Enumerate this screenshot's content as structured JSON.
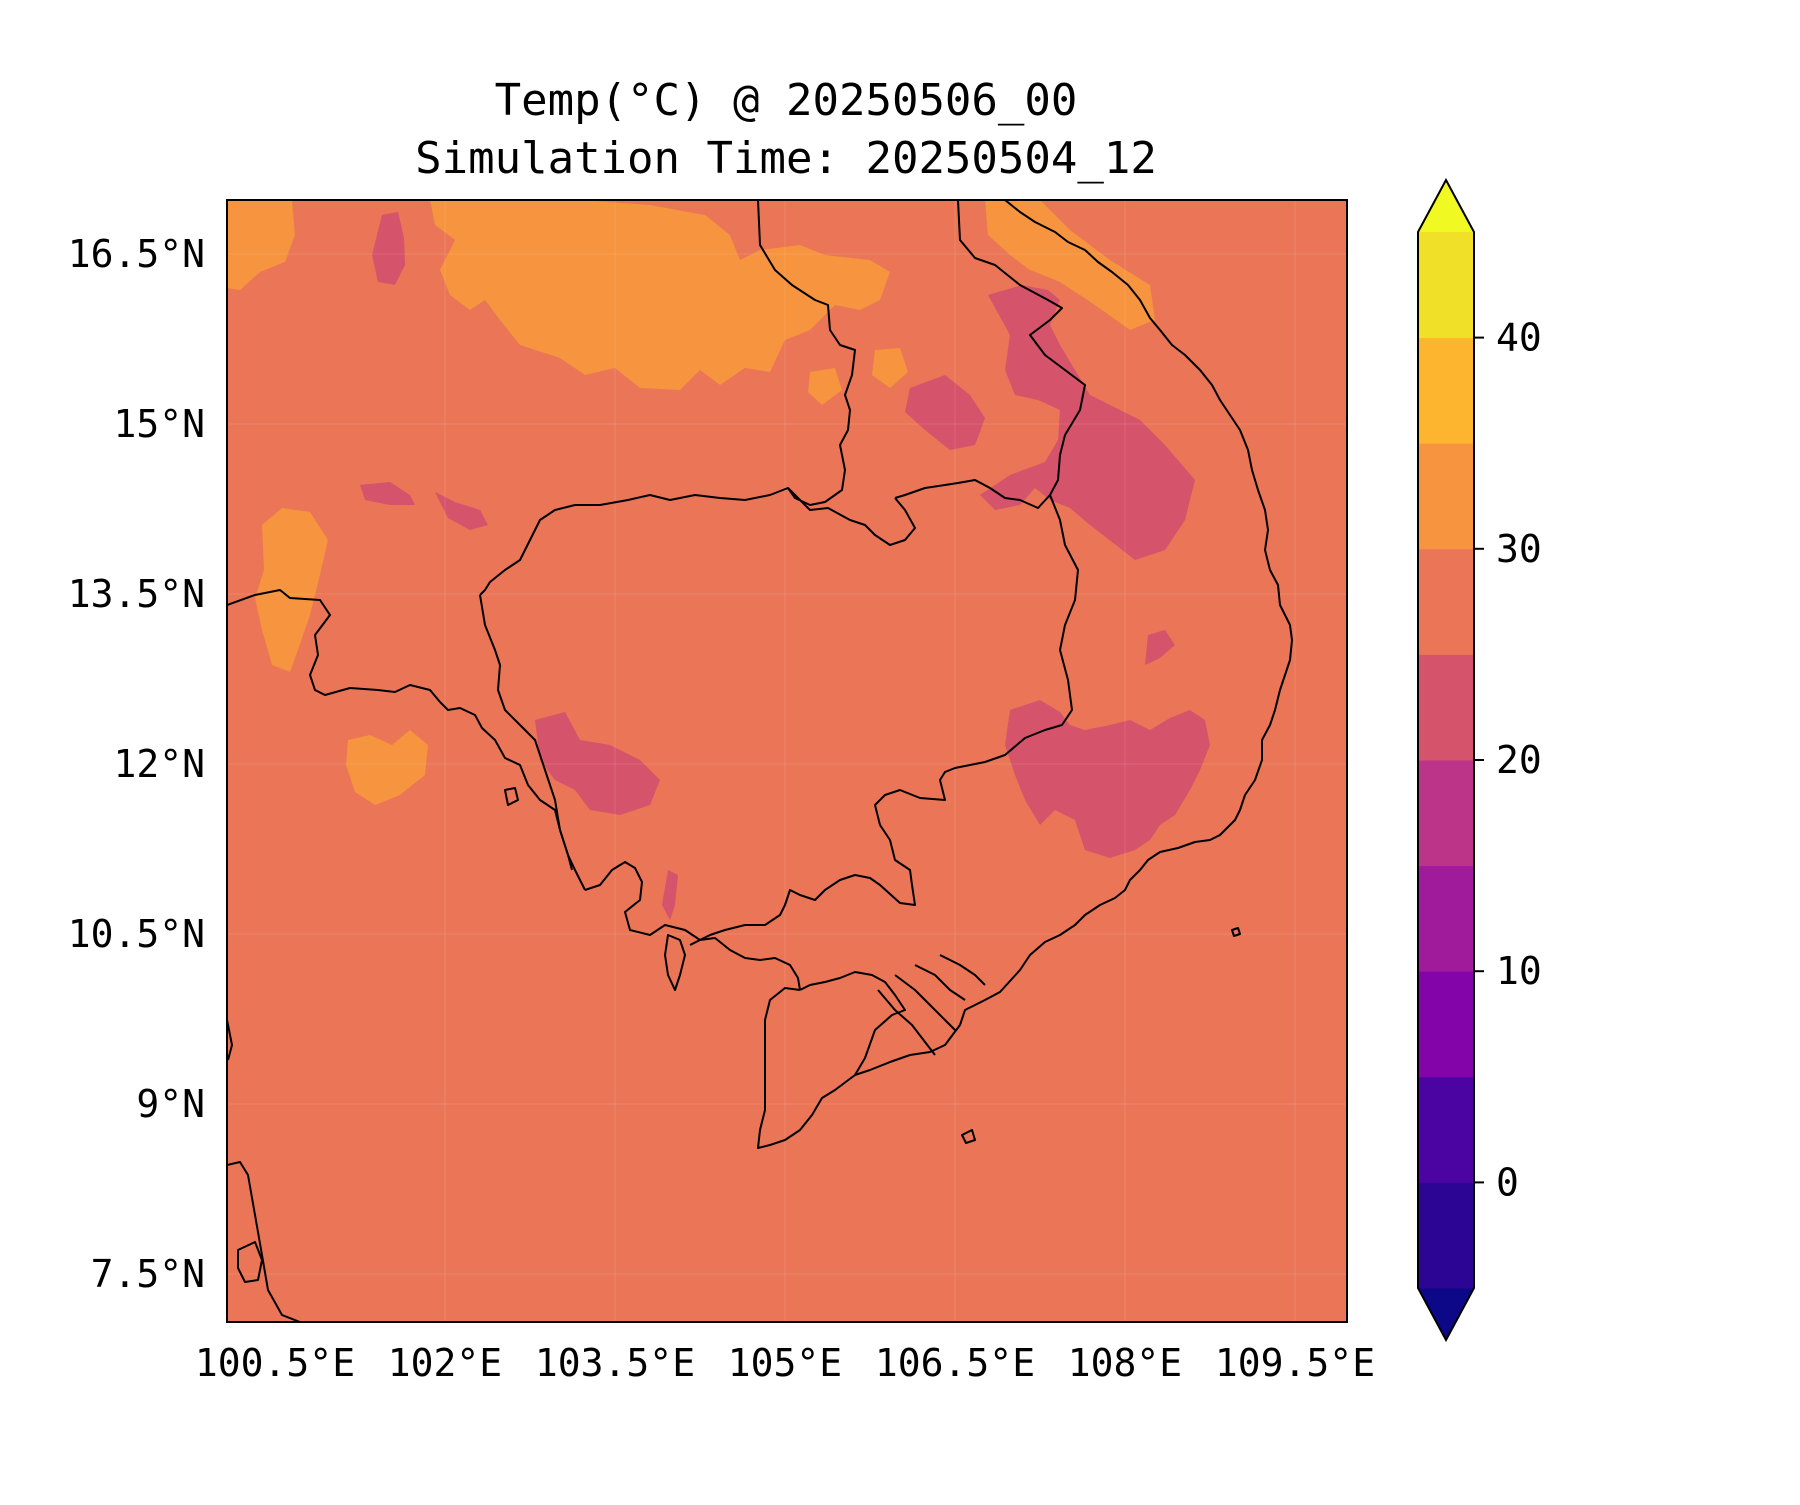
{
  "title": {
    "line1": "Temp(°C) @ 20250506_00",
    "line2": "Simulation Time: 20250504_12"
  },
  "map": {
    "background_color": "#ea7557",
    "x_ticks": [
      "100.5°E",
      "102°E",
      "103.5°E",
      "105°E",
      "106.5°E",
      "108°E",
      "109.5°E"
    ],
    "y_ticks": [
      "16.5°N",
      "15°N",
      "13.5°N",
      "12°N",
      "10.5°N",
      "9°N",
      "7.5°N"
    ],
    "regions": [
      {
        "label": "30-35",
        "color": "#f6943f"
      },
      {
        "label": "20-25",
        "color": "#d5536b"
      }
    ]
  },
  "colorbar": {
    "tick_labels": [
      "40",
      "30",
      "20",
      "10",
      "0"
    ],
    "colors_low_to_high": [
      "#0d0887",
      "#2c0594",
      "#4b03a1",
      "#8304a8",
      "#a01a9c",
      "#bc3488",
      "#d5536b",
      "#ea7557",
      "#f6943f",
      "#fdb42f",
      "#f0e027",
      "#f0f921"
    ],
    "extend": "both"
  }
}
